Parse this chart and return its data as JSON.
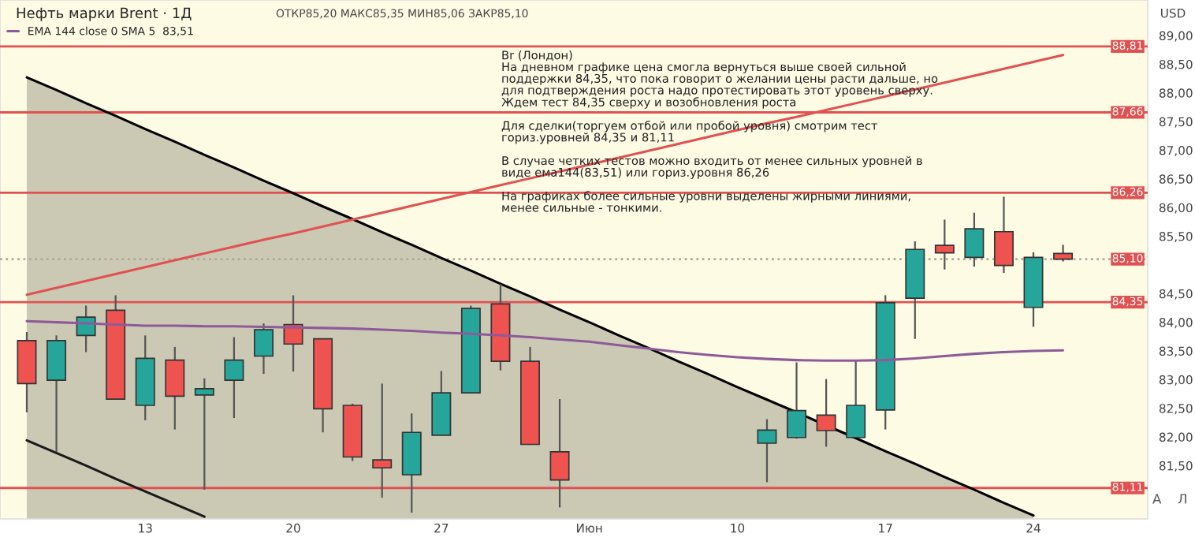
{
  "chart_data": {
    "type": "candlestick",
    "title": "Нефть марки Brent · 1Д",
    "subtitle": "ОТКР85,20 МАКС85,35 МИН85,06 ЗАКР85,10",
    "ylabel": "USD",
    "categories": [
      null,
      null,
      null,
      null,
      "13",
      null,
      null,
      null,
      null,
      "20",
      null,
      null,
      null,
      null,
      "27",
      null,
      null,
      null,
      null,
      "Июн",
      null,
      null,
      null,
      null,
      "10",
      null,
      null,
      null,
      null,
      "17",
      null,
      null,
      null,
      null,
      "24",
      null
    ],
    "ohlc": [
      [
        83.68,
        83.83,
        82.43,
        82.93
      ],
      [
        82.99,
        83.77,
        81.74,
        83.68
      ],
      [
        83.77,
        84.29,
        83.48,
        84.09
      ],
      [
        84.21,
        84.47,
        82.65,
        82.66
      ],
      [
        82.55,
        83.77,
        82.29,
        83.37
      ],
      [
        83.34,
        83.57,
        82.13,
        82.71
      ],
      [
        82.73,
        83.02,
        81.08,
        82.84
      ],
      [
        82.99,
        83.74,
        82.33,
        83.34
      ],
      [
        83.41,
        83.98,
        83.1,
        83.87
      ],
      [
        83.96,
        84.47,
        83.14,
        83.62
      ],
      [
        83.71,
        83.71,
        82.08,
        82.49
      ],
      [
        82.55,
        82.58,
        81.58,
        81.65
      ],
      [
        81.6,
        82.93,
        80.94,
        81.46
      ],
      [
        81.34,
        82.41,
        80.68,
        82.08
      ],
      [
        82.03,
        83.15,
        82.03,
        82.77
      ],
      [
        82.77,
        84.29,
        82.77,
        84.24
      ],
      [
        84.32,
        84.67,
        83.16,
        83.32
      ],
      [
        83.32,
        83.57,
        81.86,
        81.87
      ],
      [
        81.74,
        82.66,
        80.77,
        81.25
      ],
      null,
      null,
      null,
      null,
      null,
      null,
      [
        81.89,
        82.31,
        81.21,
        82.12
      ],
      [
        81.99,
        83.3,
        81.97,
        82.46
      ],
      [
        82.38,
        83.01,
        81.83,
        82.11
      ],
      [
        81.99,
        83.34,
        81.99,
        82.55
      ],
      [
        82.47,
        84.47,
        82.13,
        84.34
      ],
      [
        84.42,
        85.41,
        83.71,
        85.27
      ],
      [
        85.34,
        85.79,
        84.92,
        85.21
      ],
      [
        85.13,
        85.91,
        84.97,
        85.63
      ],
      [
        85.58,
        86.19,
        84.86,
        84.99
      ],
      [
        84.26,
        85.22,
        83.92,
        85.13
      ],
      [
        85.2,
        85.35,
        85.06,
        85.1
      ]
    ],
    "colors": [
      "#ef5350",
      "#26a69a",
      "#26a69a",
      "#ef5350",
      "#26a69a",
      "#ef5350",
      "#26a69a",
      "#26a69a",
      "#26a69a",
      "#ef5350",
      "#ef5350",
      "#ef5350",
      "#ef5350",
      "#26a69a",
      "#26a69a",
      "#26a69a",
      "#ef5350",
      "#ef5350",
      "#ef5350",
      null,
      null,
      null,
      null,
      null,
      null,
      "#26a69a",
      "#26a69a",
      "#ef5350",
      "#26a69a",
      "#26a69a",
      "#26a69a",
      "#ef5350",
      "#26a69a",
      "#ef5350",
      "#26a69a",
      "#ef5350"
    ],
    "series": [
      {
        "type": "area",
        "color": "#cbc8b4",
        "values": [
          88.27,
          88.05,
          87.82,
          87.6,
          87.37,
          87.15,
          86.92,
          86.7,
          86.47,
          86.25,
          86.02,
          85.8,
          85.57,
          85.35,
          85.12,
          84.9,
          84.67,
          84.45,
          84.22,
          84.0,
          83.77,
          83.55,
          83.32,
          83.1,
          82.87,
          82.65,
          82.43,
          82.2,
          81.98,
          81.75,
          81.53,
          81.3,
          81.08,
          80.85,
          80.63,
          null
        ]
      },
      {
        "type": "line",
        "color": "#1a1a1a",
        "values": [
          81.94,
          81.72,
          81.5,
          81.27,
          81.05,
          80.83,
          80.61,
          null,
          null,
          null,
          null,
          null,
          null,
          null,
          null,
          null,
          null,
          null,
          null,
          null,
          null,
          null,
          null,
          null,
          null,
          null,
          null,
          null,
          null,
          null,
          null,
          null,
          null,
          null,
          null,
          null
        ]
      },
      {
        "type": "line",
        "color": "#e05252",
        "values": [
          84.48,
          84.6,
          84.72,
          84.84,
          84.96,
          85.08,
          85.2,
          85.32,
          85.44,
          85.55,
          85.67,
          85.79,
          85.91,
          86.03,
          86.15,
          86.27,
          86.39,
          86.51,
          86.63,
          86.75,
          86.87,
          86.99,
          87.11,
          87.23,
          87.35,
          87.47,
          87.58,
          87.7,
          87.82,
          87.94,
          88.06,
          88.18,
          88.3,
          88.42,
          88.54,
          88.66
        ]
      },
      {
        "type": "line",
        "name": "EMA 144 close 0 SMA 5  83,51",
        "color": "#8e5a9a",
        "values": [
          84.02,
          84.0,
          83.98,
          83.96,
          83.94,
          83.94,
          83.93,
          83.93,
          83.92,
          83.91,
          83.9,
          83.89,
          83.87,
          83.85,
          83.82,
          83.8,
          83.77,
          83.74,
          83.7,
          83.66,
          83.6,
          83.54,
          83.48,
          83.43,
          83.39,
          83.36,
          83.34,
          83.33,
          83.33,
          83.34,
          83.37,
          83.41,
          83.45,
          83.48,
          83.5,
          83.51
        ]
      }
    ],
    "ylim": [
      80.57,
      89.62
    ],
    "yticks": [
      {
        "value": 81.5,
        "label": "81,50"
      },
      {
        "value": 82,
        "label": "82,00"
      },
      {
        "value": 82.5,
        "label": "82,50"
      },
      {
        "value": 83,
        "label": "83,00"
      },
      {
        "value": 83.5,
        "label": "83,50"
      },
      {
        "value": 84,
        "label": "84,00"
      },
      {
        "value": 84.5,
        "label": "84,50"
      },
      {
        "value": 85.5,
        "label": "85,50"
      },
      {
        "value": 86,
        "label": "86,00"
      },
      {
        "value": 86.5,
        "label": "86,50"
      },
      {
        "value": 87,
        "label": "87,00"
      },
      {
        "value": 87.5,
        "label": "87,50"
      },
      {
        "value": 88,
        "label": "88,00"
      },
      {
        "value": 88.5,
        "label": "88,50"
      },
      {
        "value": 89,
        "label": "89,00"
      }
    ],
    "ref_lines": [
      {
        "axis": "y",
        "value": 88.81,
        "label": "88,81",
        "color": "#e05252"
      },
      {
        "axis": "y",
        "value": 87.66,
        "label": "87,66",
        "color": "#e05252"
      },
      {
        "axis": "y",
        "value": 86.26,
        "label": "86,26",
        "color": "#e05252"
      },
      {
        "axis": "y",
        "value": 85.1,
        "label": "85,10",
        "color": "#b0a89a",
        "line_style": "dotted"
      },
      {
        "axis": "y",
        "value": 84.35,
        "label": "84,35",
        "color": "#e05252"
      },
      {
        "axis": "y",
        "value": 81.11,
        "label": "81,11",
        "color": "#e05252"
      }
    ],
    "legend": "top left",
    "annotations": [
      "Br (Лондон)\nНа дневном графике цена смогла вернуться выше своей сильной\nподдержки 84,35, что пока говорит о желании цены расти дальше, но\nдля подтверждения роста надо протестировать этот уровень сверху.\nЖдем тест 84,35 сверху и возобновления роста\n\nДля сделки(торгуем отбой или пробой уровня) смотрим тест\nгориз.уровней 84,35 и 81,11\n\nВ случае четких тестов можно входить от менее сильных уровней в\nвиде ема144(83,51) или гориз.уровня 86,26\n\nНа графиках более сильные уровни выделены жирными линиями,\nменее сильные - тонкими.",
      "A",
      "Л"
    ]
  }
}
